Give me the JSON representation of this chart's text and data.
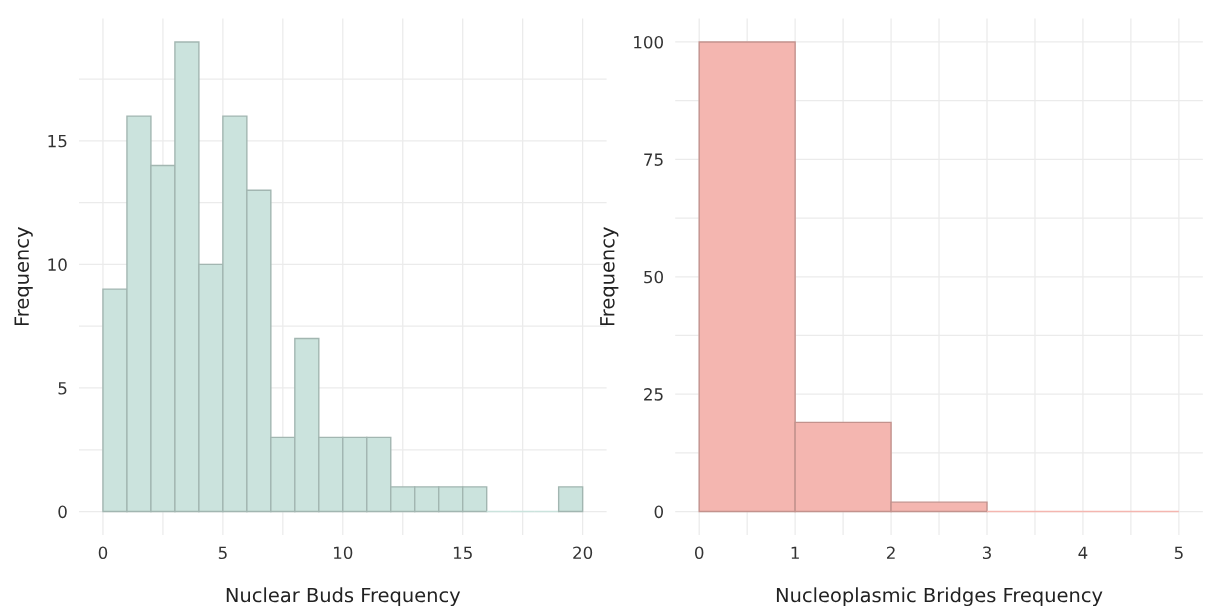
{
  "chart_data": [
    {
      "type": "histogram",
      "xlabel": "Nuclear Buds Frequency",
      "ylabel": "Frequency",
      "bins": [
        0,
        1,
        2,
        3,
        4,
        5,
        6,
        7,
        8,
        9,
        10,
        11,
        12,
        13,
        14,
        15,
        16,
        17,
        18,
        19,
        20
      ],
      "values": [
        9,
        16,
        14,
        19,
        10,
        16,
        13,
        3,
        7,
        3,
        3,
        3,
        1,
        1,
        1,
        1,
        0,
        0,
        0,
        1
      ],
      "color": "#cbe3dd",
      "xlim": [
        -1,
        21
      ],
      "ylim": [
        -0.95,
        19.95
      ],
      "xticks": [
        0,
        {
          "value": 2.5,
          "label": null
        },
        5,
        {
          "value": 7.5,
          "label": null
        },
        10,
        {
          "value": 12.5,
          "label": null
        },
        15,
        {
          "value": 17.5,
          "label": null
        },
        20
      ],
      "yticks": [
        0,
        {
          "value": 2.5,
          "label": null
        },
        5,
        {
          "value": 7.5,
          "label": null
        },
        10,
        {
          "value": 12.5,
          "label": null
        },
        15,
        {
          "value": 17.5,
          "label": null
        }
      ],
      "grid": true
    },
    {
      "type": "histogram",
      "xlabel": "Nucleoplasmic Bridges Frequency",
      "ylabel": "Frequency",
      "bins": [
        0,
        1,
        2,
        3,
        4,
        5
      ],
      "values": [
        100,
        19,
        2,
        0,
        0
      ],
      "color": "#f4b6b0",
      "xlim": [
        -0.25,
        5.25
      ],
      "ylim": [
        -5,
        105
      ],
      "xticks": [
        0,
        {
          "value": 0.5,
          "label": null
        },
        1,
        {
          "value": 1.5,
          "label": null
        },
        2,
        {
          "value": 2.5,
          "label": null
        },
        3,
        {
          "value": 3.5,
          "label": null
        },
        4,
        {
          "value": 4.5,
          "label": null
        },
        5
      ],
      "yticks": [
        0,
        {
          "value": 12.5,
          "label": null
        },
        25,
        {
          "value": 37.5,
          "label": null
        },
        50,
        {
          "value": 62.5,
          "label": null
        },
        75,
        {
          "value": 87.5,
          "label": null
        },
        100
      ],
      "grid": true
    }
  ]
}
